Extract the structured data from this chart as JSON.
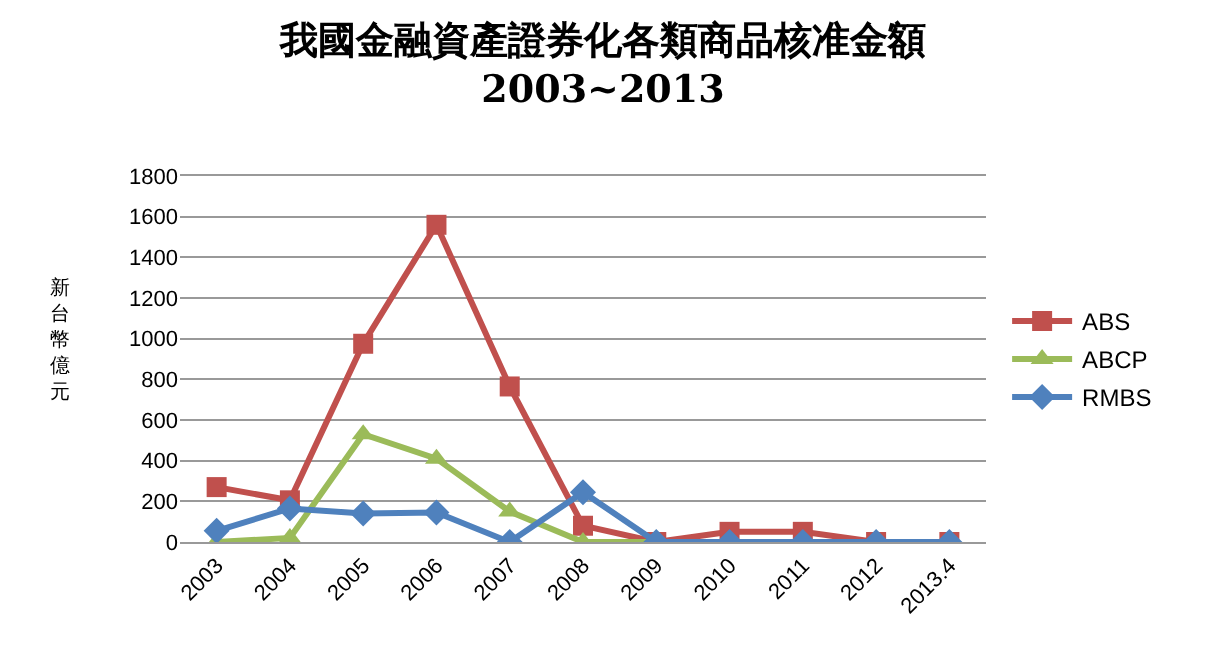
{
  "chart_data": {
    "type": "line",
    "title": "我國金融資產證券化各類商品核准金額",
    "subtitle": "2003~2013",
    "ylabel": "新台幣億元",
    "categories": [
      "2003",
      "2004",
      "2005",
      "2006",
      "2007",
      "2008",
      "2009",
      "2010",
      "2011",
      "2012",
      "2013.4"
    ],
    "series": [
      {
        "name": "ABS",
        "color": "#c0504d",
        "marker": "square",
        "values": [
          270,
          205,
          975,
          1560,
          765,
          80,
          0,
          50,
          50,
          0,
          0
        ]
      },
      {
        "name": "ABCP",
        "color": "#9bbb59",
        "marker": "triangle",
        "values": [
          0,
          20,
          530,
          410,
          150,
          0,
          0,
          0,
          null,
          null,
          null
        ]
      },
      {
        "name": "RMBS",
        "color": "#4f81bd",
        "marker": "diamond",
        "values": [
          55,
          165,
          140,
          145,
          0,
          245,
          0,
          0,
          0,
          0,
          0
        ]
      }
    ],
    "ylim": [
      0,
      1800
    ],
    "yticks": [
      0,
      200,
      400,
      600,
      800,
      1000,
      1200,
      1400,
      1600,
      1800
    ],
    "grid": "y",
    "legend": "right",
    "line_style": "solid"
  }
}
